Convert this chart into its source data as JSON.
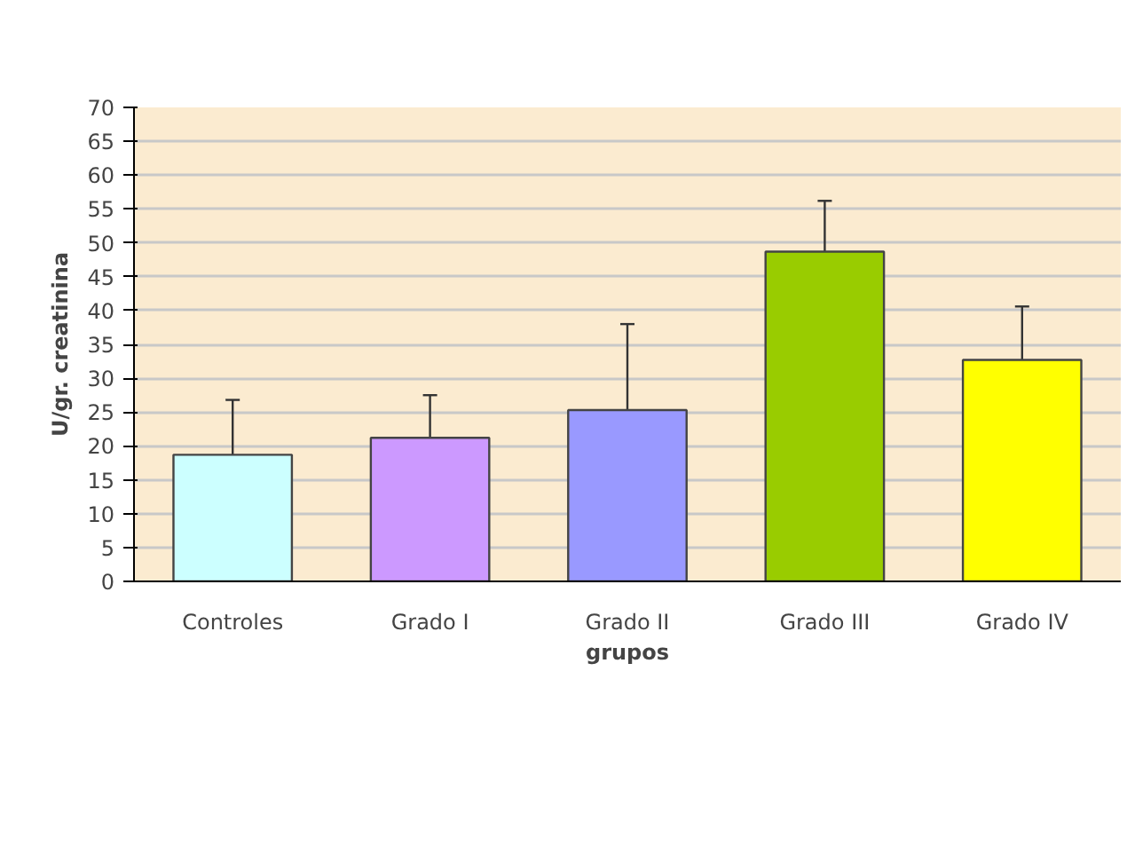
{
  "chart_data": {
    "type": "bar",
    "xlabel": "grupos",
    "ylabel": "U/gr. creatinina",
    "categories": [
      "Controles",
      "Grado I",
      "Grado II",
      "Grado III",
      "Grado IV"
    ],
    "values": [
      18.7,
      21.2,
      25.3,
      48.7,
      32.7
    ],
    "colors": [
      "#ccffff",
      "#cc99ff",
      "#9999ff",
      "#99cc00",
      "#ffff00"
    ],
    "errors": [
      [
        18.7,
        26.8
      ],
      [
        21.2,
        27.5
      ],
      [
        25.3,
        38.0
      ],
      [
        48.7,
        56.2
      ],
      [
        32.7,
        40.6
      ]
    ],
    "ylim": [
      0,
      70
    ],
    "yticks": [
      0,
      5,
      10,
      15,
      20,
      25,
      30,
      35,
      40,
      45,
      50,
      55,
      60,
      65,
      70
    ],
    "grid": "y"
  }
}
